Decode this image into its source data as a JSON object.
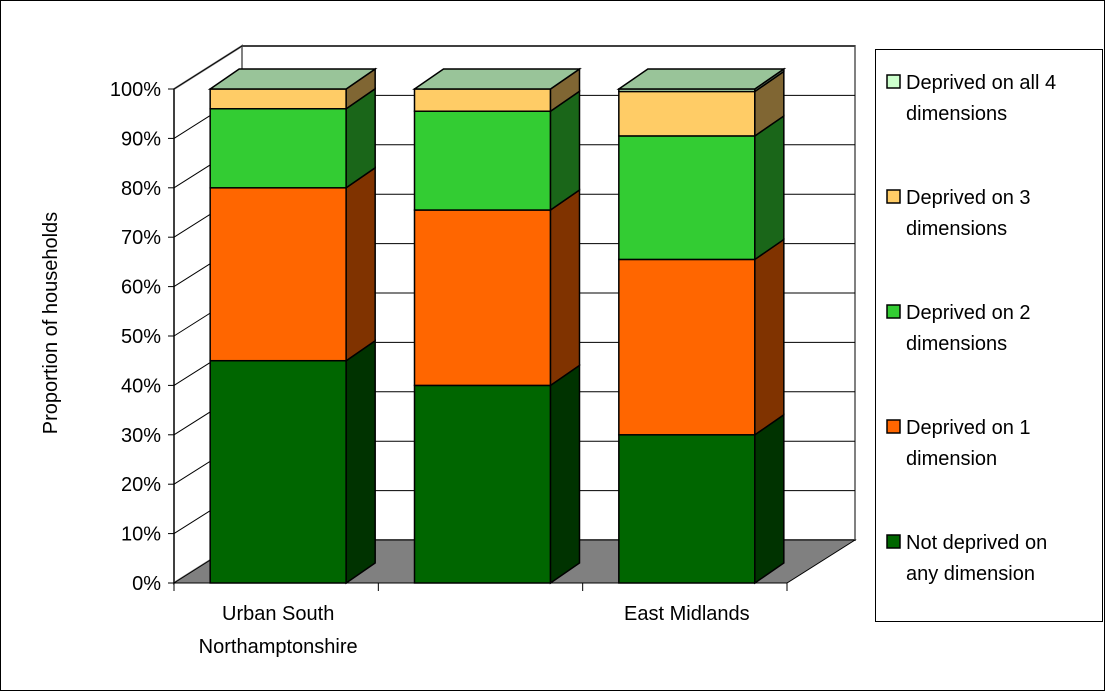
{
  "chart_data": {
    "type": "bar",
    "stacked": true,
    "three_d": true,
    "title": "",
    "xlabel": "",
    "ylabel": "Proportion of households",
    "ylim": [
      0,
      100
    ],
    "y_ticks": [
      "0%",
      "10%",
      "20%",
      "30%",
      "40%",
      "50%",
      "60%",
      "70%",
      "80%",
      "90%",
      "100%"
    ],
    "categories": [
      "Urban South Northamptonshire",
      "",
      "East Midlands"
    ],
    "x_tick_labels": [
      {
        "lines": [
          "Urban South",
          "Northamptonshire"
        ]
      },
      {
        "lines": []
      },
      {
        "lines": [
          "East Midlands"
        ]
      }
    ],
    "series": [
      {
        "name": "Not deprived on any dimension",
        "legend_lines": [
          "Not deprived on",
          "any dimension"
        ],
        "color": "#006600",
        "side_color": "#003300",
        "values": [
          45,
          40,
          30
        ]
      },
      {
        "name": "Deprived on 1 dimension",
        "legend_lines": [
          "Deprived on 1",
          "dimension"
        ],
        "color": "#FF6600",
        "side_color": "#803300",
        "values": [
          35,
          35.5,
          35.5
        ]
      },
      {
        "name": "Deprived on 2 dimensions",
        "legend_lines": [
          "Deprived on 2",
          "dimensions"
        ],
        "color": "#33CC33",
        "side_color": "#1A6619",
        "values": [
          16,
          20,
          25
        ]
      },
      {
        "name": "Deprived on 3 dimensions",
        "legend_lines": [
          "Deprived on 3",
          "dimensions"
        ],
        "color": "#FFCC66",
        "side_color": "#806633",
        "values": [
          4,
          4.5,
          9
        ]
      },
      {
        "name": "Deprived on all 4 dimensions",
        "legend_lines": [
          "Deprived on all 4",
          "dimensions"
        ],
        "color": "#CCFFCC",
        "side_color": "#668066",
        "values": [
          0,
          0,
          0.5
        ]
      }
    ],
    "grid": true,
    "legend_position": "right",
    "colors": {
      "floor": "#808080",
      "grid": "#000000",
      "wall": "#ffffff",
      "top_face": "#99c499"
    }
  }
}
